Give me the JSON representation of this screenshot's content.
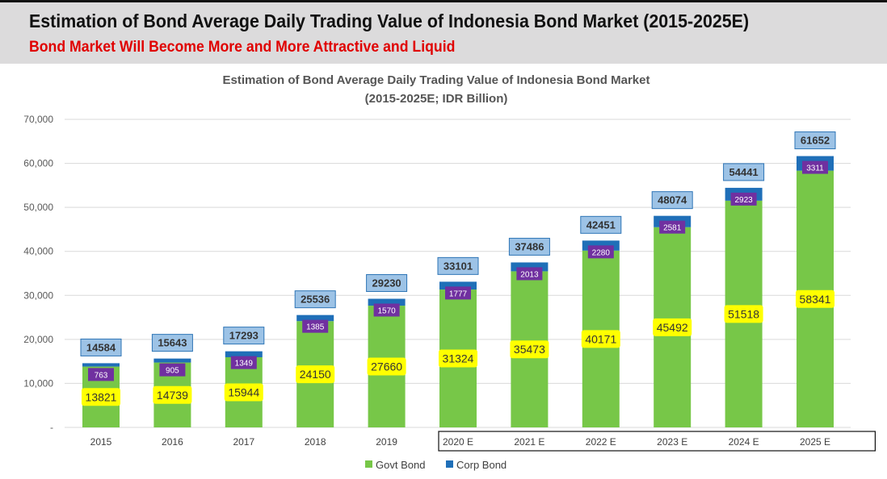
{
  "header": {
    "title": "Estimation of Bond Average Daily Trading Value of Indonesia Bond Market (2015-2025E)",
    "subtitle": "Bond Market Will Become More and More Attractive and Liquid"
  },
  "chart_data": {
    "type": "bar",
    "stacked": true,
    "title": "Estimation of Bond Average Daily Trading Value of Indonesia Bond Market",
    "subtitle": "(2015-2025E; IDR Billion)",
    "xlabel": "",
    "ylabel": "",
    "ylim": [
      0,
      70000
    ],
    "yticks": [
      0,
      10000,
      20000,
      30000,
      40000,
      50000,
      60000,
      70000
    ],
    "ytick_labels": [
      "-",
      "10,000",
      "20,000",
      "30,000",
      "40,000",
      "50,000",
      "60,000",
      "70,000"
    ],
    "grid": true,
    "legend": "bottom",
    "categories": [
      "2015",
      "2016",
      "2017",
      "2018",
      "2019",
      "2020 E",
      "2021 E",
      "2022 E",
      "2023 E",
      "2024 E",
      "2025 E"
    ],
    "forecast_from": "2020 E",
    "series": [
      {
        "name": "Govt Bond",
        "color": "#77c748",
        "label_color": "#ffff00",
        "values": [
          13821,
          14739,
          15944,
          24150,
          27660,
          31324,
          35473,
          40171,
          45492,
          51518,
          58341
        ]
      },
      {
        "name": "Corp Bond",
        "color": "#1f6fb8",
        "label_color": "#7030a0",
        "values": [
          763,
          905,
          1349,
          1385,
          1570,
          1777,
          2013,
          2280,
          2581,
          2923,
          3311
        ]
      }
    ],
    "totals": [
      14584,
      15643,
      17293,
      25536,
      29230,
      33101,
      37486,
      42451,
      48074,
      54441,
      61652
    ],
    "total_label_color": "#9dc3e6"
  }
}
